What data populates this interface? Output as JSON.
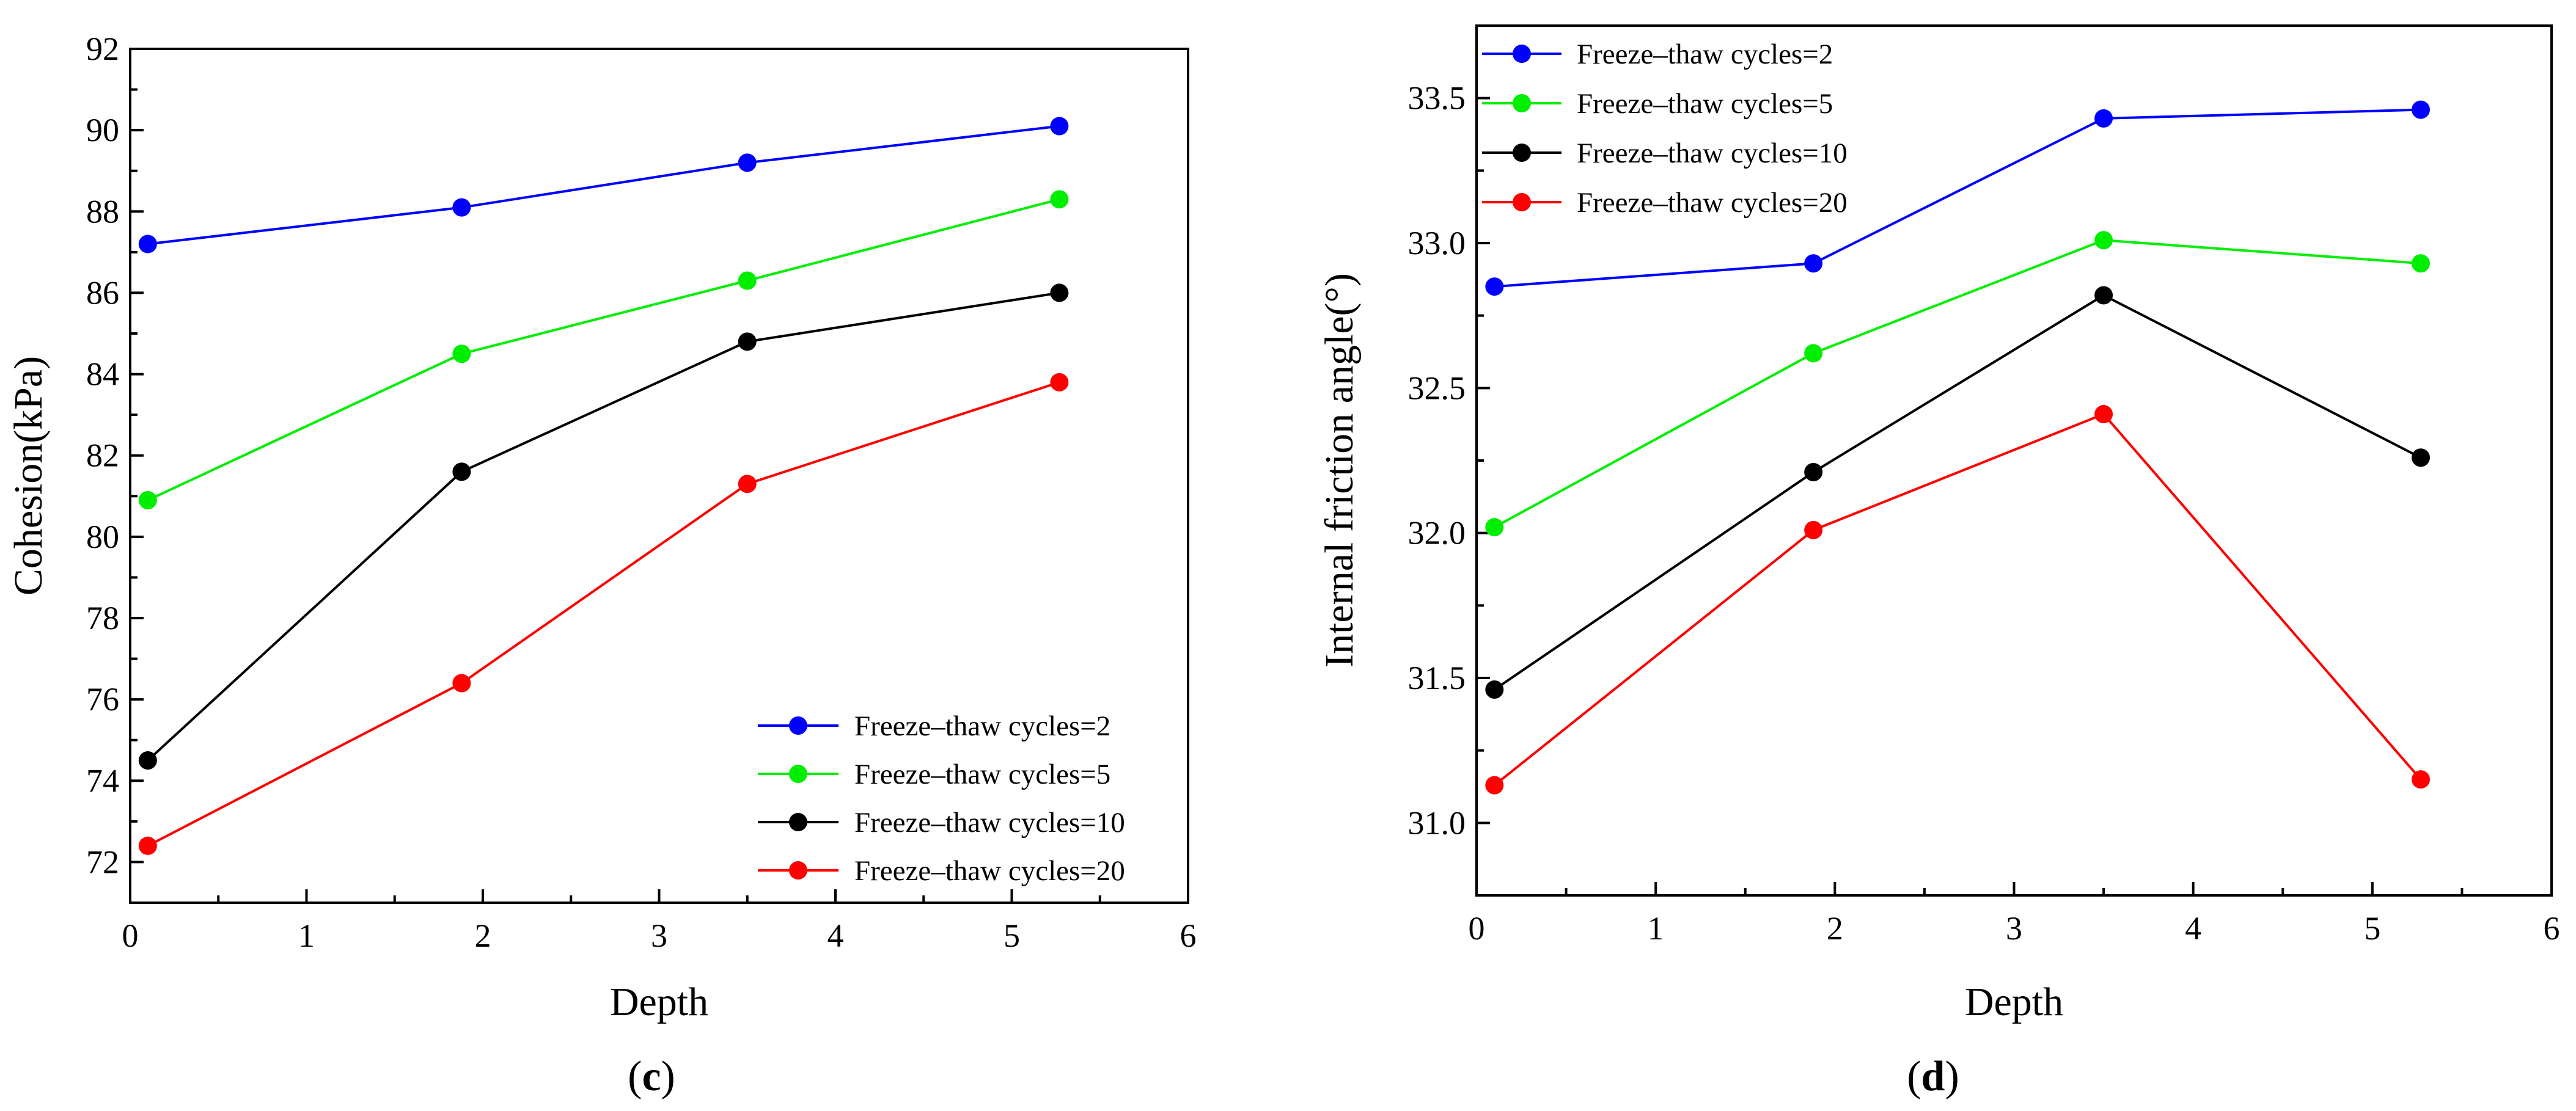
{
  "figure": {
    "panel_labels": [
      "(c)",
      "(d)"
    ]
  },
  "chart_data": [
    {
      "type": "line",
      "panel": "(c)",
      "xlabel": "Depth",
      "ylabel": "Cohesion(kPa)",
      "xlim": [
        0,
        6
      ],
      "ylim": [
        71,
        92
      ],
      "xticks": [
        0,
        1,
        2,
        3,
        4,
        5,
        6
      ],
      "yticks": [
        72,
        74,
        76,
        78,
        80,
        82,
        84,
        86,
        88,
        90,
        92
      ],
      "x": [
        0.1,
        1.88,
        3.5,
        5.27
      ],
      "legend_position": "bottom-right",
      "grid": false,
      "series": [
        {
          "name": "Freeze–thaw cycles=2",
          "color": "#0000ff",
          "values": [
            87.2,
            88.1,
            89.2,
            90.1
          ]
        },
        {
          "name": "Freeze–thaw cycles=5",
          "color": "#00ee00",
          "values": [
            80.9,
            84.5,
            86.3,
            88.3
          ]
        },
        {
          "name": "Freeze–thaw cycles=10",
          "color": "#000000",
          "values": [
            74.5,
            81.6,
            84.8,
            86.0
          ]
        },
        {
          "name": "Freeze–thaw cycles=20",
          "color": "#ff0000",
          "values": [
            72.4,
            76.4,
            81.3,
            83.8
          ]
        }
      ]
    },
    {
      "type": "line",
      "panel": "(d)",
      "xlabel": "Depth",
      "ylabel": "Internal friction angle(°)",
      "xlim": [
        0,
        6
      ],
      "ylim": [
        30.75,
        33.75
      ],
      "xticks": [
        0,
        1,
        2,
        3,
        4,
        5,
        6
      ],
      "yticks": [
        31.0,
        31.5,
        32.0,
        32.5,
        33.0,
        33.5
      ],
      "x": [
        0.1,
        1.88,
        3.5,
        5.27
      ],
      "legend_position": "top-left",
      "grid": false,
      "series": [
        {
          "name": "Freeze–thaw cycles=2",
          "color": "#0000ff",
          "values": [
            32.85,
            32.93,
            33.43,
            33.46
          ]
        },
        {
          "name": "Freeze–thaw cycles=5",
          "color": "#00ee00",
          "values": [
            32.02,
            32.62,
            33.01,
            32.93
          ]
        },
        {
          "name": "Freeze–thaw cycles=10",
          "color": "#000000",
          "values": [
            31.46,
            32.21,
            32.82,
            32.26
          ]
        },
        {
          "name": "Freeze–thaw cycles=20",
          "color": "#ff0000",
          "values": [
            31.13,
            32.01,
            32.41,
            31.15
          ]
        }
      ]
    }
  ]
}
